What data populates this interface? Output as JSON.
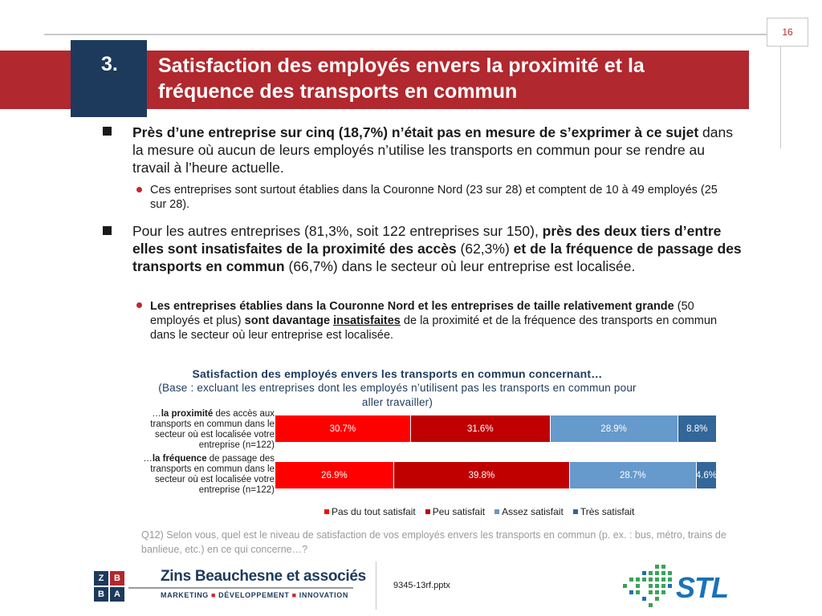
{
  "page": {
    "number": "16"
  },
  "header": {
    "section_number": "3.",
    "title": "Satisfaction des employés envers la proximité et la fréquence des transports en commun"
  },
  "bullets": {
    "b1": {
      "bold": "Près d’une entreprise sur cinq (18,7%) n’était pas en mesure de s’exprimer à ce sujet",
      "rest": " dans la mesure où aucun de leurs employés n’utilise les transports en commun pour se rendre au travail à l’heure actuelle."
    },
    "b1_sub": "Ces entreprises sont surtout établies dans la Couronne Nord (23 sur 28) et comptent de 10 à 49 employés (25 sur 28).",
    "b2": {
      "p1": "Pour les autres entreprises (81,3%, soit 122 entreprises sur 150), ",
      "b1": "près des deux tiers d’entre elles sont insatisfaites de la proximité des accès",
      "p2": " (62,3%) ",
      "b2": "et de la fréquence de passage des transports en commun",
      "p3": " (66,7%) dans le secteur où leur entreprise est localisée."
    },
    "b2_sub": {
      "bold1": "Les entreprises établies dans la Couronne Nord et les entreprises de taille relativement grande",
      "plain1": " (50 employés et plus) ",
      "bold2": "sont davantage ",
      "bold_underline": "insatisfaites",
      "plain2": " de la proximité et de la fréquence des transports en commun dans le secteur où leur entreprise est localisée."
    }
  },
  "chart_data": {
    "type": "bar",
    "orientation": "horizontal-stacked-100",
    "title": "Satisfaction des employés envers les transports en commun concernant…",
    "subtitle": "(Base : excluant les entreprises dont les employés n’utilisent pas les transports en commun pour aller travailler)",
    "categories": [
      {
        "prefix": "…",
        "bold": "la proximité",
        "rest": " des accès aux transports en commun dans le secteur où est localisée votre entreprise (n=122)"
      },
      {
        "prefix": "…",
        "bold": "la fréquence",
        "rest": " de passage des transports en commun dans le secteur où est localisée votre entreprise (n=122)"
      }
    ],
    "series": [
      {
        "name": "Pas du tout satisfait",
        "color": "#ff0000",
        "values": [
          30.7,
          26.9
        ],
        "labels": [
          "30.7%",
          "26.9%"
        ]
      },
      {
        "name": "Peu satisfait",
        "color": "#c00000",
        "values": [
          31.6,
          39.8
        ],
        "labels": [
          "31.6%",
          "39.8%"
        ]
      },
      {
        "name": "Assez satisfait",
        "color": "#6699cc",
        "values": [
          28.9,
          28.7
        ],
        "labels": [
          "28.9%",
          "28.7%"
        ]
      },
      {
        "name": "Très satisfait",
        "color": "#336699",
        "values": [
          8.8,
          4.6
        ],
        "labels": [
          "8.8%",
          "4.6%"
        ]
      }
    ],
    "legend_position": "bottom"
  },
  "footnote": "Q12) Selon vous, quel est le niveau de satisfaction de vos employés envers les transports en commun (p. ex. : bus, métro, trains de banlieue, etc.) en ce qui concerne…?",
  "footer": {
    "logo_letters": [
      "Z",
      "B",
      "B",
      "A"
    ],
    "company": "Zins Beauchesne et associés",
    "tagline": [
      "MARKETING",
      "DÉVELOPPEMENT",
      "INNOVATION"
    ],
    "tagline_sep": "■",
    "filename": "9345-13rf.pptx",
    "client_logo": "STL"
  },
  "colors": {
    "banner": "#b1282e",
    "number_box": "#1d3a5c",
    "accent_red": "#c0282e"
  }
}
